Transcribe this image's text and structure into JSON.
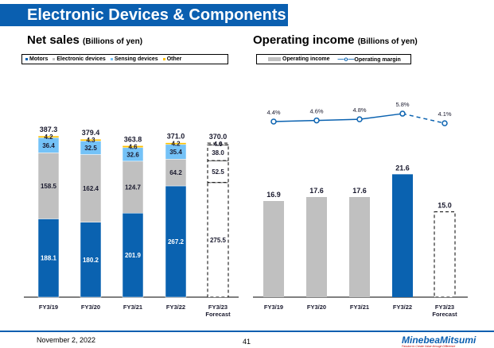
{
  "title": "Electronic Devices & Components",
  "left": {
    "heading": "Net sales",
    "unit": "(Billions of yen)"
  },
  "right": {
    "heading": "Operating income",
    "unit": "(Billions of yen)"
  },
  "footer": {
    "date": "November 2, 2022",
    "page": "41",
    "logo": "MinebeaMitsumi",
    "tagline": "Passion to Create Value through Difference"
  },
  "chart_data": [
    {
      "type": "bar",
      "stacked": true,
      "categories": [
        "FY3/19",
        "FY3/20",
        "FY3/21",
        "FY3/22",
        "FY3/23\nForecast"
      ],
      "forecast_index": 4,
      "series": [
        {
          "name": "Motors",
          "color": "#0a62b0",
          "values": [
            188.1,
            180.2,
            201.9,
            267.2,
            275.5
          ]
        },
        {
          "name": "Electronic devices",
          "color": "#c0c0c0",
          "values": [
            158.5,
            162.4,
            124.7,
            64.2,
            52.5
          ]
        },
        {
          "name": "Sensing devices",
          "color": "#74c2f7",
          "values": [
            36.4,
            32.5,
            32.6,
            35.4,
            38.0
          ]
        },
        {
          "name": "Other",
          "color": "#ffc000",
          "values": [
            4.2,
            4.3,
            4.6,
            4.2,
            4.0
          ]
        }
      ],
      "totals": [
        387.3,
        379.4,
        363.8,
        371.0,
        370.0
      ]
    },
    {
      "type": "bar+line",
      "categories": [
        "FY3/19",
        "FY3/20",
        "FY3/21",
        "FY3/22",
        "FY3/23\nForecast"
      ],
      "forecast_index": 4,
      "series": [
        {
          "name": "Operating income",
          "color": "#c0c0c0",
          "highlight_color": "#0a62b0",
          "values": [
            16.9,
            17.6,
            17.6,
            21.6,
            15.0
          ]
        },
        {
          "name": "Operating margin",
          "color": "#0a62b0",
          "values": [
            "4.4%",
            "4.6%",
            "4.8%",
            "5.8%",
            "4.1%"
          ]
        }
      ]
    }
  ]
}
